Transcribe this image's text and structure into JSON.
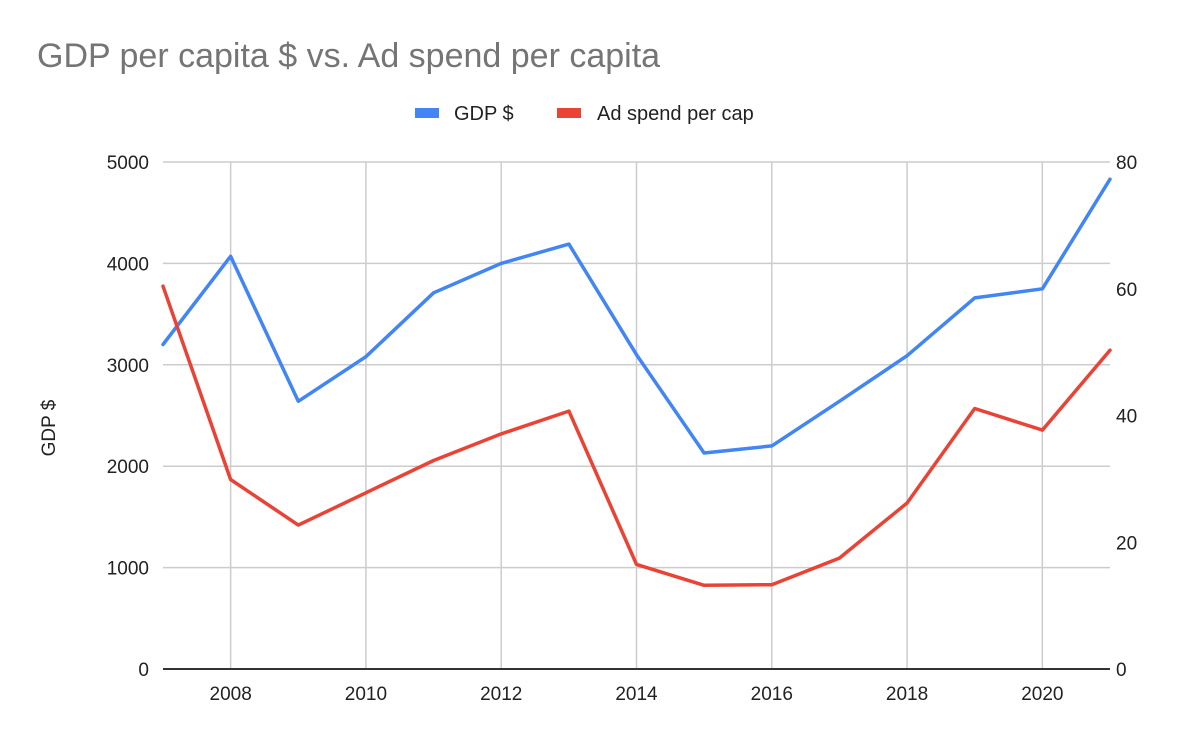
{
  "chart_data": {
    "type": "line",
    "title": "GDP per capita $ vs. Ad spend per capita",
    "x": [
      2007,
      2008,
      2009,
      2010,
      2011,
      2012,
      2013,
      2014,
      2015,
      2016,
      2017,
      2018,
      2019,
      2020,
      2021
    ],
    "x_ticks": [
      "2008",
      "2010",
      "2012",
      "2014",
      "2016",
      "2018",
      "2020"
    ],
    "x_tick_values": [
      2008,
      2010,
      2012,
      2014,
      2016,
      2018,
      2020
    ],
    "xlim": [
      2007,
      2021
    ],
    "ylabel_left": "GDP $",
    "ylabel_right": "",
    "ylim_left": [
      0,
      5000
    ],
    "ylim_right": [
      0,
      80
    ],
    "y_ticks_left": [
      "0",
      "1000",
      "2000",
      "3000",
      "4000",
      "5000"
    ],
    "y_ticks_right": [
      "0",
      "20",
      "40",
      "60",
      "80"
    ],
    "grid": true,
    "legend_position": "top",
    "series": [
      {
        "name": "GDP $",
        "axis": "left",
        "color": "#4285f4",
        "values": [
          3200,
          4070,
          2640,
          3080,
          3710,
          4000,
          4190,
          3100,
          2130,
          2200,
          2640,
          3090,
          3660,
          3750,
          4830
        ]
      },
      {
        "name": "Ad spend per cap",
        "axis": "right",
        "color": "#ea4335",
        "values": [
          60.4,
          29.9,
          22.7,
          27.8,
          32.9,
          37.1,
          40.7,
          16.5,
          13.2,
          13.3,
          17.5,
          26.2,
          41.1,
          37.7,
          50.3
        ]
      }
    ]
  }
}
